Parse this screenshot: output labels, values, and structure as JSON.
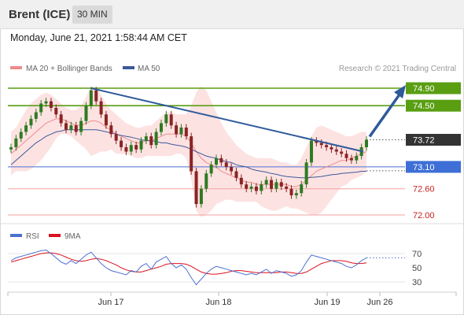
{
  "header": {
    "title": "Brent (ICE)",
    "period": "30 MIN"
  },
  "timestamp": "Monday, June 21, 2021 1:58:44 AM CET",
  "legend": {
    "bollinger": "MA 20 + Bollinger Bands",
    "ma50": "MA 50",
    "bollinger_color": "#f08a8a",
    "ma50_color": "#3c5a9a"
  },
  "copyright": "Research © 2021 Trading Central",
  "rsi_legend": {
    "rsi": "RSI",
    "ma9": "9MA",
    "rsi_color": "#4a6fd1",
    "ma9_color": "#d9121e"
  },
  "colors": {
    "resistance": "#5a9e12",
    "support_blue": "#4a6fd1",
    "support_red": "#d95a5a",
    "trendline": "#2f5a9a",
    "candle_up": "#2e7a22",
    "candle_down": "#8a2424",
    "band_fill": "#fde2e2"
  },
  "chart_data": [
    {
      "type": "line",
      "name": "price",
      "ylim": [
        71.95,
        75.1
      ],
      "x_ticks": [
        "Jun 17",
        "Jun 18",
        "Jun 19",
        "Jun 26"
      ],
      "levels": [
        {
          "value": 74.9,
          "label": "74.90",
          "kind": "resistance"
        },
        {
          "value": 74.5,
          "label": "74.50",
          "kind": "resistance"
        },
        {
          "value": 73.72,
          "label": "73.72",
          "kind": "last"
        },
        {
          "value": 73.1,
          "label": "73.10",
          "kind": "pivot"
        },
        {
          "value": 72.6,
          "label": "72.60",
          "kind": "support"
        },
        {
          "value": 72.0,
          "label": "72.00",
          "kind": "support"
        }
      ],
      "series": [
        {
          "name": "close",
          "values": [
            73.55,
            73.75,
            73.9,
            74.05,
            74.2,
            74.35,
            74.55,
            74.6,
            74.45,
            74.3,
            74.1,
            73.95,
            74.05,
            73.9,
            74.15,
            74.5,
            74.85,
            74.6,
            74.3,
            74.05,
            73.85,
            73.7,
            73.55,
            73.45,
            73.6,
            73.5,
            73.7,
            73.8,
            73.6,
            73.9,
            74.1,
            74.3,
            74.05,
            73.85,
            74.0,
            73.8,
            73.0,
            72.25,
            72.6,
            72.95,
            73.15,
            73.3,
            73.2,
            73.1,
            73.0,
            72.85,
            72.7,
            72.6,
            72.65,
            72.55,
            72.7,
            72.8,
            72.6,
            72.75,
            72.65,
            72.6,
            72.45,
            72.5,
            72.7,
            73.2,
            73.7,
            73.65,
            73.6,
            73.55,
            73.5,
            73.45,
            73.4,
            73.3,
            73.25,
            73.35,
            73.55,
            73.72
          ]
        },
        {
          "name": "ma20",
          "values": [
            73.4,
            73.5,
            73.6,
            73.7,
            73.8,
            73.9,
            74.0,
            74.1,
            74.15,
            74.2,
            74.2,
            74.15,
            74.1,
            74.05,
            74.05,
            74.1,
            74.15,
            74.15,
            74.1,
            74.0,
            73.95,
            73.85,
            73.8,
            73.75,
            73.7,
            73.65,
            73.65,
            73.7,
            73.7,
            73.75,
            73.8,
            73.85,
            73.85,
            73.85,
            73.85,
            73.8,
            73.65,
            73.45,
            73.3,
            73.2,
            73.15,
            73.1,
            73.0,
            72.95,
            72.9,
            72.85,
            72.8,
            72.75,
            72.75,
            72.7,
            72.7,
            72.7,
            72.7,
            72.7,
            72.7,
            72.7,
            72.65,
            72.65,
            72.7,
            72.8,
            72.9,
            73.0,
            73.05,
            73.1,
            73.15,
            73.2,
            73.25,
            73.25,
            73.3,
            73.35,
            73.4,
            73.45
          ]
        },
        {
          "name": "ma50",
          "values": [
            73.15,
            73.25,
            73.35,
            73.45,
            73.55,
            73.65,
            73.72,
            73.8,
            73.85,
            73.9,
            73.92,
            73.95,
            73.95,
            73.95,
            73.95,
            73.95,
            73.95,
            73.95,
            73.93,
            73.9,
            73.88,
            73.85,
            73.82,
            73.8,
            73.78,
            73.75,
            73.72,
            73.7,
            73.7,
            73.68,
            73.65,
            73.65,
            73.62,
            73.6,
            73.58,
            73.55,
            73.5,
            73.45,
            73.4,
            73.35,
            73.32,
            73.3,
            73.25,
            73.22,
            73.2,
            73.15,
            73.12,
            73.1,
            73.05,
            73.02,
            73.0,
            72.98,
            72.95,
            72.93,
            72.9,
            72.88,
            72.87,
            72.86,
            72.85,
            72.85,
            72.86,
            72.87,
            72.88,
            72.9,
            72.92,
            72.93,
            72.95,
            72.96,
            72.97,
            72.98,
            73.0,
            73.0
          ]
        },
        {
          "name": "bb_upper",
          "values": [
            73.9,
            74.0,
            74.2,
            74.4,
            74.55,
            74.65,
            74.75,
            74.8,
            74.75,
            74.65,
            74.55,
            74.45,
            74.4,
            74.4,
            74.5,
            74.7,
            74.95,
            74.9,
            74.75,
            74.55,
            74.4,
            74.3,
            74.2,
            74.1,
            74.05,
            74.0,
            74.0,
            74.05,
            74.05,
            74.15,
            74.25,
            74.35,
            74.35,
            74.3,
            74.3,
            74.3,
            74.5,
            74.8,
            74.95,
            74.85,
            74.6,
            74.35,
            74.1,
            73.9,
            73.75,
            73.6,
            73.5,
            73.4,
            73.35,
            73.3,
            73.3,
            73.3,
            73.3,
            73.25,
            73.2,
            73.2,
            73.15,
            73.15,
            73.3,
            73.55,
            73.8,
            74.0,
            74.05,
            74.0,
            73.95,
            73.9,
            73.85,
            73.8,
            73.8,
            73.85,
            73.9,
            73.9
          ]
        },
        {
          "name": "bb_lower",
          "values": [
            72.9,
            73.0,
            73.0,
            73.0,
            73.05,
            73.15,
            73.25,
            73.4,
            73.55,
            73.75,
            73.85,
            73.85,
            73.8,
            73.7,
            73.6,
            73.5,
            73.35,
            73.4,
            73.45,
            73.45,
            73.5,
            73.4,
            73.4,
            73.4,
            73.35,
            73.3,
            73.3,
            73.35,
            73.35,
            73.35,
            73.35,
            73.35,
            73.35,
            73.4,
            73.4,
            73.3,
            72.8,
            72.1,
            71.95,
            72.0,
            72.1,
            72.25,
            72.3,
            72.35,
            72.35,
            72.3,
            72.3,
            72.3,
            72.3,
            72.3,
            72.2,
            72.15,
            72.1,
            72.1,
            72.15,
            72.2,
            72.15,
            72.15,
            72.1,
            72.05,
            72.0,
            72.0,
            72.05,
            72.2,
            72.35,
            72.5,
            72.65,
            72.7,
            72.8,
            72.85,
            72.9,
            73.0
          ]
        }
      ]
    },
    {
      "type": "line",
      "name": "RSI",
      "ylim": [
        10,
        90
      ],
      "y_ticks": [
        70,
        50,
        30
      ],
      "series": [
        {
          "name": "RSI",
          "values": [
            60,
            64,
            66,
            68,
            70,
            72,
            74,
            75,
            70,
            64,
            58,
            55,
            60,
            56,
            62,
            68,
            72,
            64,
            56,
            50,
            46,
            44,
            42,
            40,
            46,
            44,
            52,
            56,
            48,
            58,
            62,
            66,
            56,
            50,
            54,
            48,
            36,
            26,
            34,
            42,
            48,
            52,
            50,
            48,
            46,
            44,
            42,
            40,
            42,
            40,
            44,
            48,
            42,
            46,
            44,
            42,
            38,
            40,
            46,
            58,
            68,
            66,
            64,
            62,
            60,
            58,
            56,
            52,
            50,
            54,
            60,
            64
          ]
        },
        {
          "name": "9MA",
          "values": [
            58,
            60,
            62,
            64,
            66,
            68,
            70,
            71,
            71,
            70,
            68,
            65,
            62,
            60,
            59,
            60,
            62,
            63,
            62,
            60,
            57,
            54,
            50,
            47,
            45,
            44,
            44,
            46,
            48,
            50,
            52,
            55,
            56,
            56,
            56,
            55,
            52,
            48,
            44,
            42,
            41,
            41,
            42,
            43,
            45,
            46,
            46,
            45,
            44,
            43,
            43,
            43,
            43,
            43,
            44,
            44,
            43,
            42,
            42,
            44,
            48,
            52,
            56,
            58,
            60,
            60,
            60,
            59,
            57,
            56,
            56,
            57
          ]
        }
      ]
    }
  ]
}
